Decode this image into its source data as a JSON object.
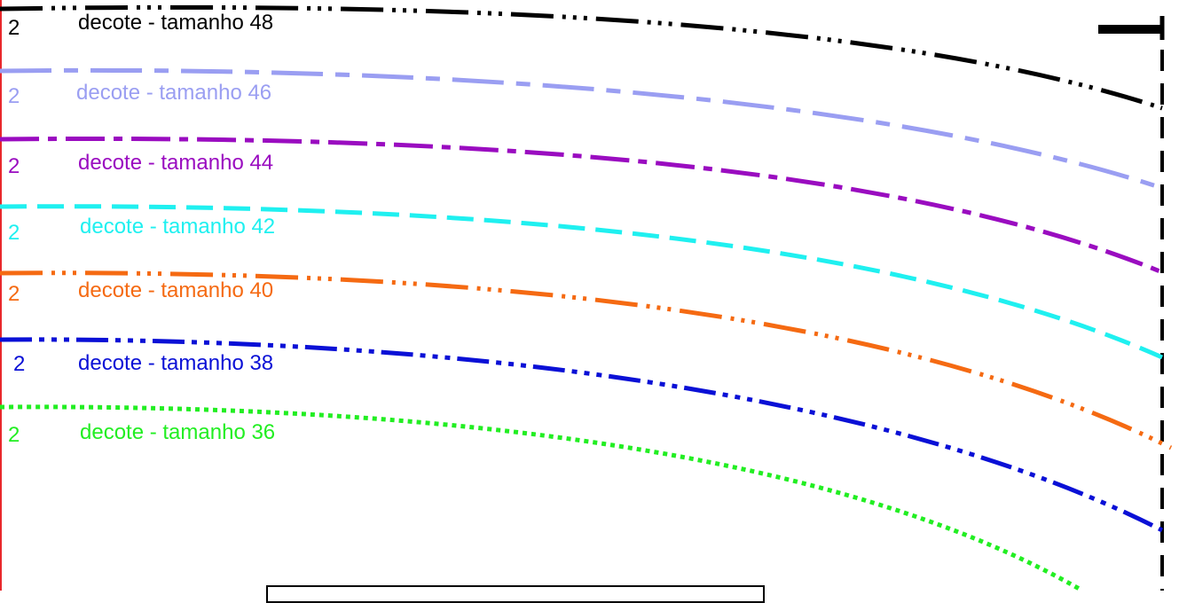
{
  "curves": [
    {
      "id": "48",
      "number": "2",
      "label": "decote - tamanho 48",
      "color": "#000000"
    },
    {
      "id": "46",
      "number": "2",
      "label": "decote - tamanho 46",
      "color": "#9a9ef2"
    },
    {
      "id": "44",
      "number": "2",
      "label": "decote - tamanho 44",
      "color": "#9a0cc0"
    },
    {
      "id": "42",
      "number": "2",
      "label": "decote - tamanho 42",
      "color": "#1ff0f0"
    },
    {
      "id": "40",
      "number": "2",
      "label": "decote - tamanho 40",
      "color": "#f56a12"
    },
    {
      "id": "38",
      "number": "2",
      "label": "decote - tamanho 38",
      "color": "#0a10d6"
    },
    {
      "id": "36",
      "number": "2",
      "label": "decote - tamanho 36",
      "color": "#22ee22"
    }
  ],
  "colors": {
    "border": "#e8282c",
    "guide": "#000000"
  }
}
